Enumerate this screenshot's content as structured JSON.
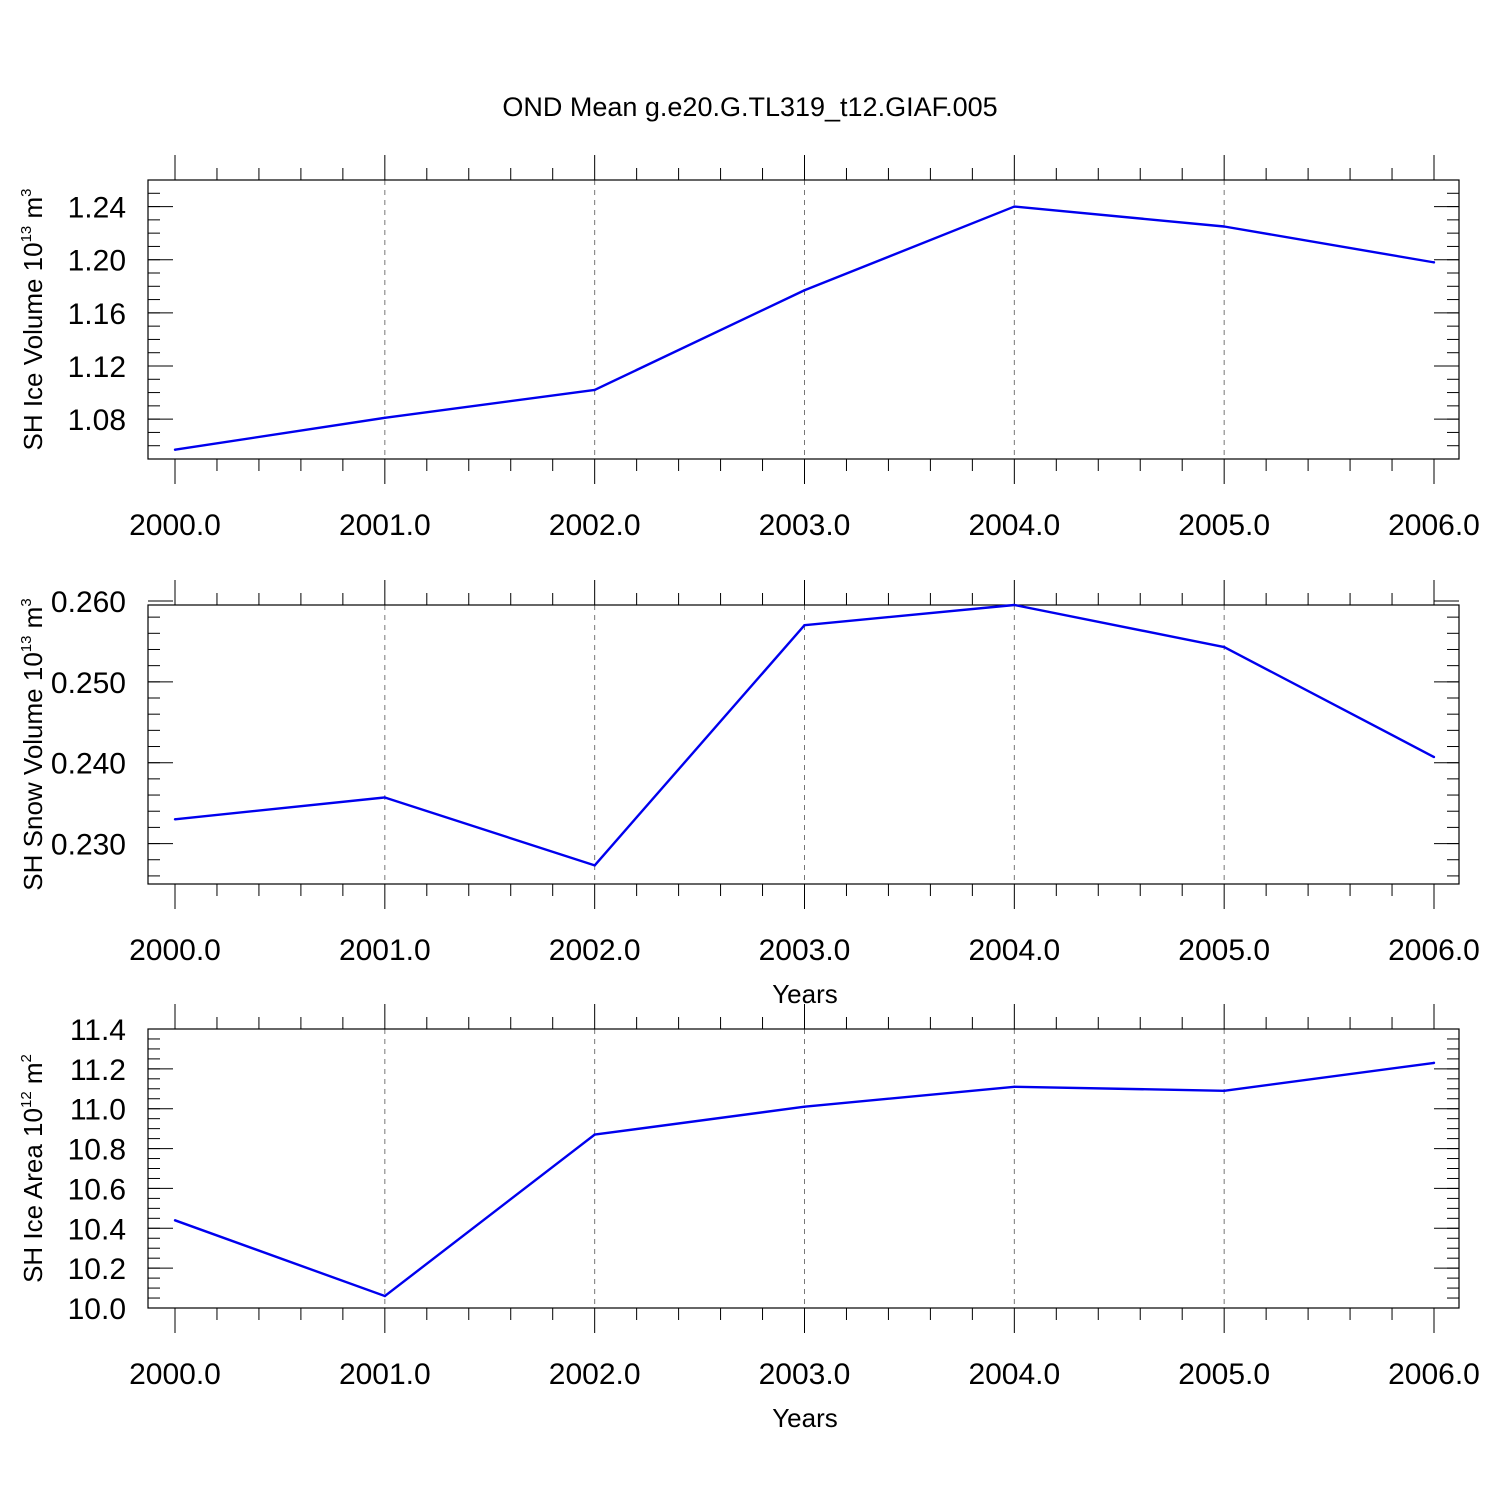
{
  "figure": {
    "title": "OND Mean g.e20.G.TL319_t12.GIAF.005"
  },
  "chart_data": [
    {
      "type": "line",
      "ylabel_base": "SH Ice Volume 10",
      "ylabel_exp": "13",
      "ylabel_unit": " m",
      "ylabel_unit_exp": "3",
      "xlabel": "",
      "x": [
        2000,
        2001,
        2002,
        2003,
        2004,
        2005,
        2006
      ],
      "xticks": [
        "2000.0",
        "2001.0",
        "2002.0",
        "2003.0",
        "2004.0",
        "2005.0",
        "2006.0"
      ],
      "xlim": [
        2000,
        2006
      ],
      "ylim": [
        1.05,
        1.26
      ],
      "yticks": [
        1.08,
        1.12,
        1.16,
        1.2,
        1.24
      ],
      "ytick_labels": [
        "1.08",
        "1.12",
        "1.16",
        "1.20",
        "1.24"
      ],
      "yminor_step": 0.01,
      "values": [
        1.057,
        1.081,
        1.102,
        1.177,
        1.24,
        1.225,
        1.198
      ],
      "color": "#0000ee",
      "grid_x": true
    },
    {
      "type": "line",
      "ylabel_base": "SH Snow Volume 10",
      "ylabel_exp": "13",
      "ylabel_unit": " m",
      "ylabel_unit_exp": "3",
      "xlabel": "Years",
      "x": [
        2000,
        2001,
        2002,
        2003,
        2004,
        2005,
        2006
      ],
      "xticks": [
        "2000.0",
        "2001.0",
        "2002.0",
        "2003.0",
        "2004.0",
        "2005.0",
        "2006.0"
      ],
      "xlim": [
        2000,
        2006
      ],
      "ylim": [
        0.225,
        0.2595
      ],
      "yticks": [
        0.23,
        0.24,
        0.25,
        0.26
      ],
      "ytick_labels": [
        "0.230",
        "0.240",
        "0.250",
        "0.260"
      ],
      "yminor_step": 0.002,
      "values": [
        0.233,
        0.2357,
        0.2273,
        0.257,
        0.2595,
        0.2543,
        0.2407
      ],
      "color": "#0000ee",
      "grid_x": true
    },
    {
      "type": "line",
      "ylabel_base": "SH Ice Area 10",
      "ylabel_exp": "12",
      "ylabel_unit": " m",
      "ylabel_unit_exp": "2",
      "xlabel": "Years",
      "x": [
        2000,
        2001,
        2002,
        2003,
        2004,
        2005,
        2006
      ],
      "xticks": [
        "2000.0",
        "2001.0",
        "2002.0",
        "2003.0",
        "2004.0",
        "2005.0",
        "2006.0"
      ],
      "xlim": [
        2000,
        2006
      ],
      "ylim": [
        10.0,
        11.4
      ],
      "yticks": [
        10.0,
        10.2,
        10.4,
        10.6,
        10.8,
        11.0,
        11.2,
        11.4
      ],
      "ytick_labels": [
        "10.0",
        "10.2",
        "10.4",
        "10.6",
        "10.8",
        "11.0",
        "11.2",
        "11.4"
      ],
      "yminor_step": 0.05,
      "values": [
        10.44,
        10.06,
        10.87,
        11.01,
        11.11,
        11.09,
        11.23
      ],
      "color": "#0000ee",
      "grid_x": true
    }
  ]
}
